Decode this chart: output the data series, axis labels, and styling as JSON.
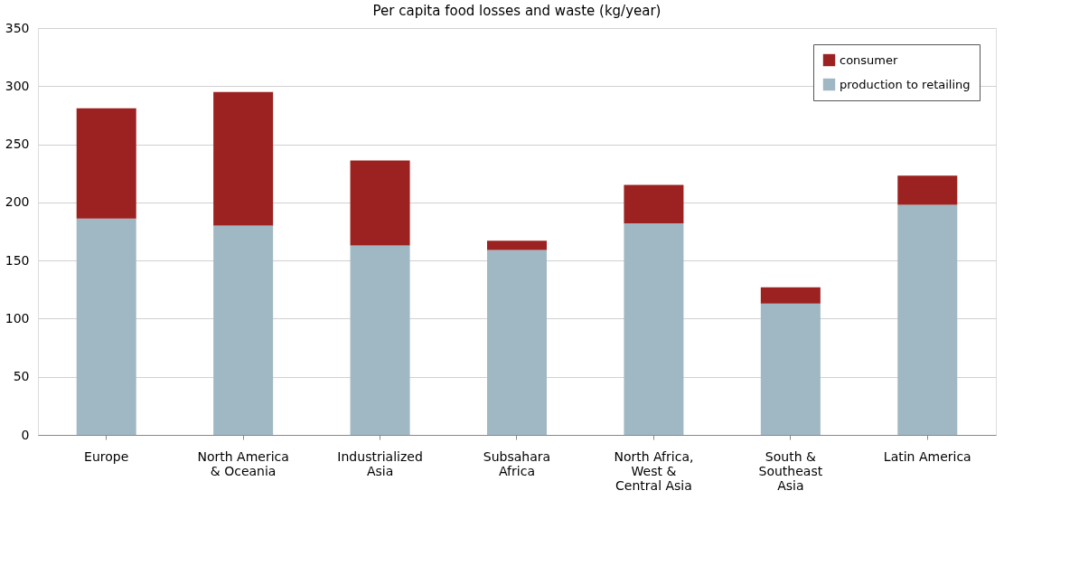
{
  "chart_data": {
    "type": "bar",
    "title": "Per capita food losses and waste (kg/year)",
    "categories": [
      "Europe",
      "North America & Oceania",
      "Industrialized Asia",
      "Subsahara Africa",
      "North Africa, West & Central Asia",
      "South & Southeast Asia",
      "Latin America"
    ],
    "stacked": true,
    "series": [
      {
        "name": "production to retailing",
        "color": "#9fb8c4",
        "values": [
          186,
          180,
          163,
          159,
          182,
          113,
          198
        ]
      },
      {
        "name": "consumer",
        "color": "#9b2220",
        "values": [
          95,
          115,
          73,
          8,
          33,
          14,
          25
        ]
      }
    ],
    "ylim": [
      0,
      350
    ],
    "yticks": [
      0,
      50,
      100,
      150,
      200,
      250,
      300,
      350
    ],
    "grid": "y",
    "legend": "top right"
  }
}
